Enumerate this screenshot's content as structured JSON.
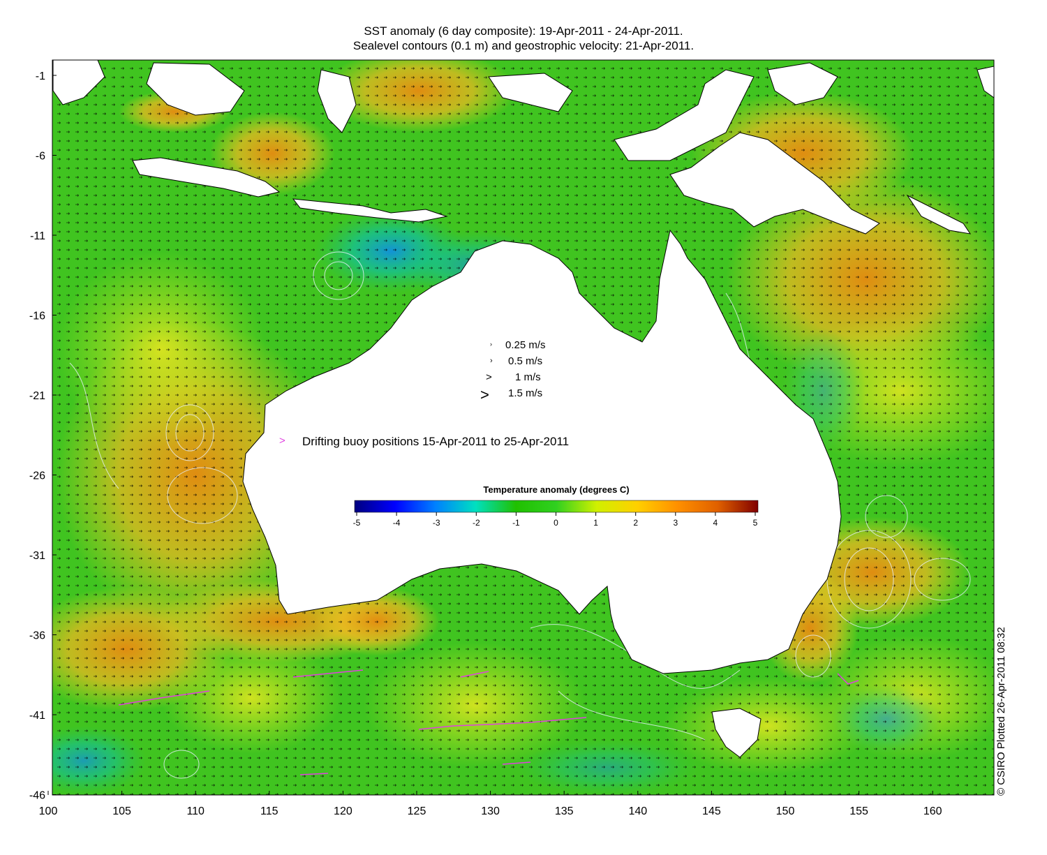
{
  "title_line1": "SST anomaly (6 day composite): 19-Apr-2011 - 24-Apr-2011.",
  "title_line2": "Sealevel contours (0.1 m) and geostrophic velocity: 21-Apr-2011.",
  "credit": "© CSIRO Plotted 26-Apr-2011 08:32",
  "map": {
    "lon_range": [
      100,
      164
    ],
    "lat_range": [
      -46,
      1
    ],
    "x_ticks": [
      "100",
      "105",
      "110",
      "115",
      "120",
      "125",
      "130",
      "135",
      "140",
      "145",
      "150",
      "155",
      "160"
    ],
    "y_ticks": [
      "-1",
      "-6",
      "-11",
      "-16",
      "-21",
      "-26",
      "-31",
      "-36",
      "-41",
      "-46"
    ]
  },
  "velocity_legend": [
    {
      "symbol": "›",
      "label": "0.25 m/s"
    },
    {
      "symbol": "›",
      "label": "0.5 m/s"
    },
    {
      "symbol": ">",
      "label": "1 m/s"
    },
    {
      "symbol": ">",
      "label": "1.5 m/s"
    }
  ],
  "buoy_legend": {
    "symbol": ">",
    "label": "Drifting buoy positions 15-Apr-2011 to 25-Apr-2011",
    "color": "#e040e0"
  },
  "colorbar": {
    "title": "Temperature anomaly (degrees C)",
    "ticks": [
      "-5",
      "-4",
      "-3",
      "-2",
      "-1",
      "0",
      "1",
      "2",
      "3",
      "4",
      "5"
    ],
    "colors": [
      "#00007f",
      "#0000ff",
      "#0080ff",
      "#00e0c0",
      "#20c000",
      "#30d020",
      "#d0f000",
      "#ffd000",
      "#ff9000",
      "#e06000",
      "#800000"
    ]
  },
  "colors": {
    "land": "#ffffff",
    "sea_base": "#40c020",
    "warm": "#f0a020",
    "cool": "#10b0a0"
  }
}
